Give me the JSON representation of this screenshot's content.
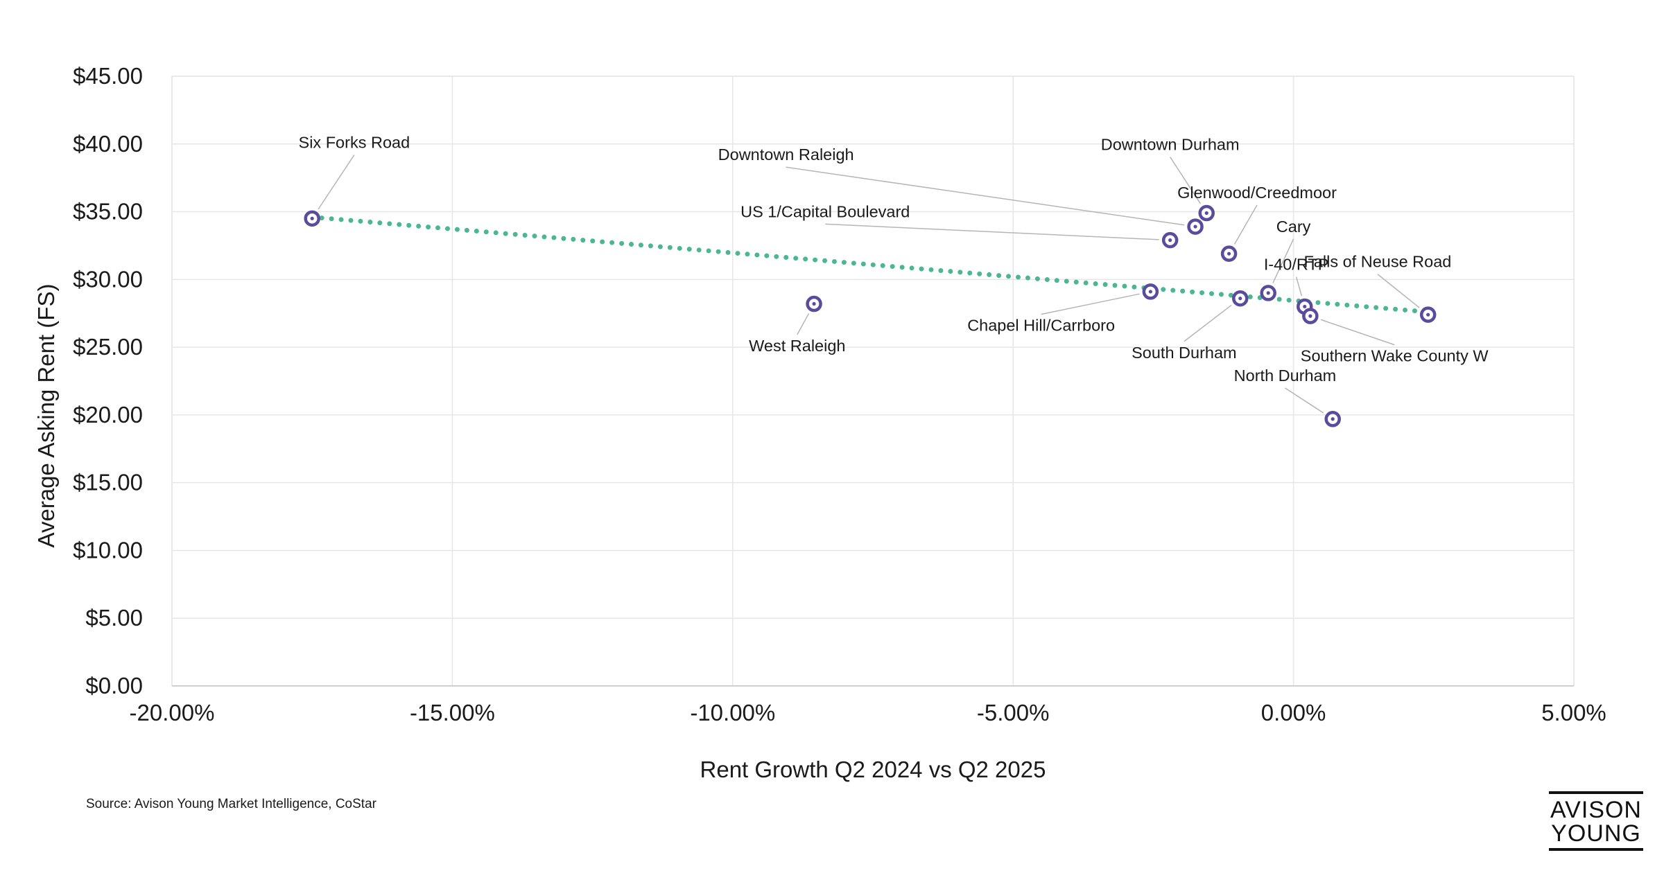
{
  "chart_data": {
    "type": "scatter",
    "xlabel": "Rent Growth Q2 2024 vs Q2 2025",
    "ylabel": "Average Asking Rent (FS)",
    "xlim": [
      -20,
      5
    ],
    "ylim": [
      0,
      45
    ],
    "x_ticks": [
      {
        "value": -20,
        "label": "-20.00%"
      },
      {
        "value": -15,
        "label": "-15.00%"
      },
      {
        "value": -10,
        "label": "-10.00%"
      },
      {
        "value": -5,
        "label": "-5.00%"
      },
      {
        "value": 0,
        "label": "0.00%"
      },
      {
        "value": 5,
        "label": "5.00%"
      }
    ],
    "y_ticks": [
      {
        "value": 0,
        "label": "$0.00"
      },
      {
        "value": 5,
        "label": "$5.00"
      },
      {
        "value": 10,
        "label": "$10.00"
      },
      {
        "value": 15,
        "label": "$15.00"
      },
      {
        "value": 20,
        "label": "$20.00"
      },
      {
        "value": 25,
        "label": "$25.00"
      },
      {
        "value": 30,
        "label": "$30.00"
      },
      {
        "value": 35,
        "label": "$35.00"
      },
      {
        "value": 40,
        "label": "$40.00"
      },
      {
        "value": 45,
        "label": "$45.00"
      }
    ],
    "grid": true,
    "trendline": {
      "style": "dotted",
      "color": "#4cb694",
      "x_start": -17.5,
      "y_start": 34.6,
      "x_end": 2.4,
      "y_end": 27.6
    },
    "marker_color": "#5a4b9d",
    "points": [
      {
        "name": "Six Forks Road",
        "x": -17.5,
        "y": 34.5,
        "label_pos": [
          -16.75,
          39.7
        ],
        "leader": true
      },
      {
        "name": "West Raleigh",
        "x": -8.55,
        "y": 28.2,
        "label_pos": [
          -8.85,
          24.7
        ],
        "leader": true
      },
      {
        "name": "US 1/Capital Boulevard",
        "x": -2.2,
        "y": 32.9,
        "label_pos": [
          -8.35,
          34.6
        ],
        "leader": true
      },
      {
        "name": "Downtown Raleigh",
        "x": -1.75,
        "y": 33.9,
        "label_pos": [
          -9.05,
          38.8
        ],
        "leader": true
      },
      {
        "name": "Downtown Durham",
        "x": -1.55,
        "y": 34.9,
        "label_pos": [
          -2.2,
          39.55
        ],
        "leader": true
      },
      {
        "name": "Glenwood/Creedmoor",
        "x": -1.15,
        "y": 31.9,
        "label_pos": [
          -0.65,
          36.0
        ],
        "leader": true
      },
      {
        "name": "Cary",
        "x": -0.45,
        "y": 29.0,
        "label_pos": [
          0.0,
          33.5
        ],
        "leader": true
      },
      {
        "name": "Chapel Hill/Carrboro",
        "x": -2.55,
        "y": 29.1,
        "label_pos": [
          -4.5,
          26.2
        ],
        "leader": true
      },
      {
        "name": "South Durham",
        "x": -0.95,
        "y": 28.6,
        "label_pos": [
          -1.95,
          24.2
        ],
        "leader": true
      },
      {
        "name": "I-40/RTP",
        "x": 0.2,
        "y": 28.0,
        "label_pos": [
          0.05,
          30.7
        ],
        "leader": true
      },
      {
        "name": "Southern Wake County W",
        "x": 0.3,
        "y": 27.3,
        "label_pos": [
          1.8,
          23.95
        ],
        "leader": true
      },
      {
        "name": "North Durham",
        "x": 0.7,
        "y": 19.7,
        "label_pos": [
          -0.15,
          22.5
        ],
        "leader": true
      },
      {
        "name": "Falls of Neuse Road",
        "x": 2.4,
        "y": 27.4,
        "label_pos": [
          1.5,
          30.9
        ],
        "leader": true
      }
    ]
  },
  "footer": {
    "source": "Source: Avison Young Market Intelligence, CoStar",
    "logo_line1": "AVISON",
    "logo_line2": "YOUNG"
  }
}
